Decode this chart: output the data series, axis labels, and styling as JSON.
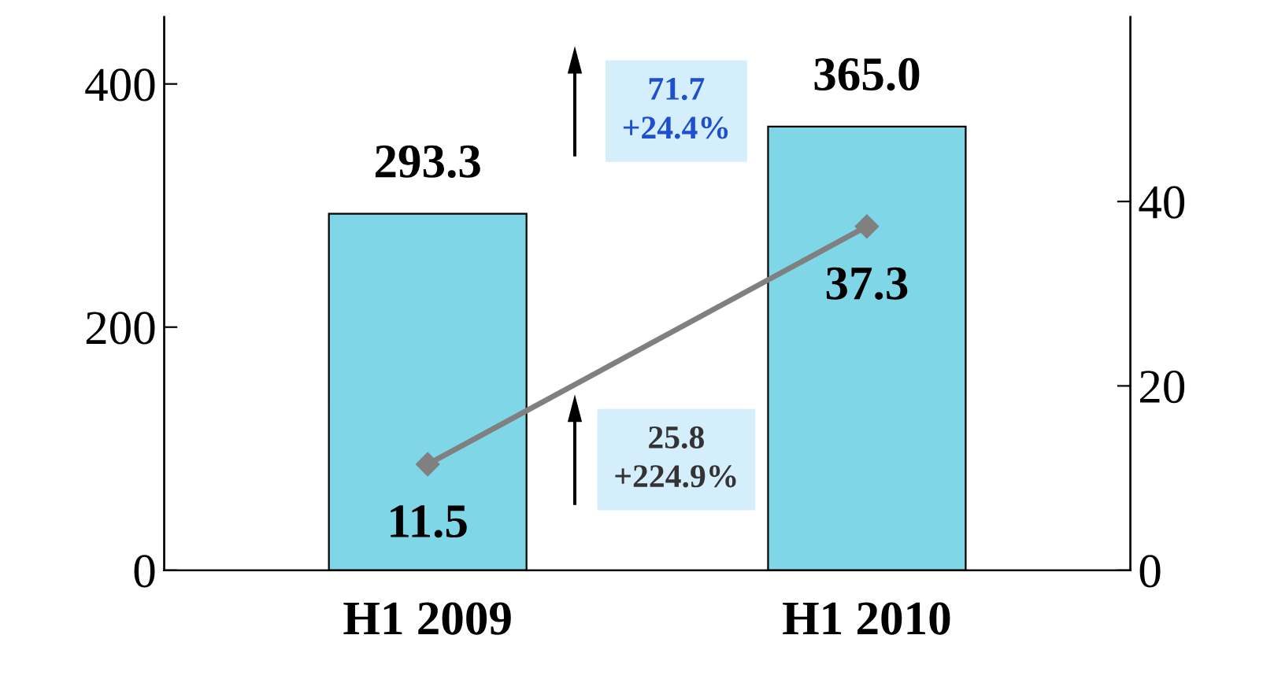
{
  "chart_data": {
    "type": "bar",
    "categories": [
      "H1 2009",
      "H1 2010"
    ],
    "series": [
      {
        "color": "#7fd6e6",
        "values": [
          293.3,
          365.0
        ],
        "value_labels": [
          "293.3",
          "365.0"
        ]
      },
      {
        "type": "line",
        "axis": "y2",
        "color": "#808080",
        "values": [
          11.5,
          37.3
        ],
        "value_labels": [
          "11.5",
          "37.3"
        ]
      }
    ],
    "ylim": [
      0,
      455
    ],
    "yticks": [
      0,
      200,
      400
    ],
    "y2lim": [
      0,
      60
    ],
    "y2ticks": [
      0,
      20,
      40
    ],
    "marker": "diamond",
    "line_style": "solid",
    "grid": false,
    "annotations": [
      "71.7\n+24.4%",
      "25.8\n+224.9%"
    ]
  }
}
